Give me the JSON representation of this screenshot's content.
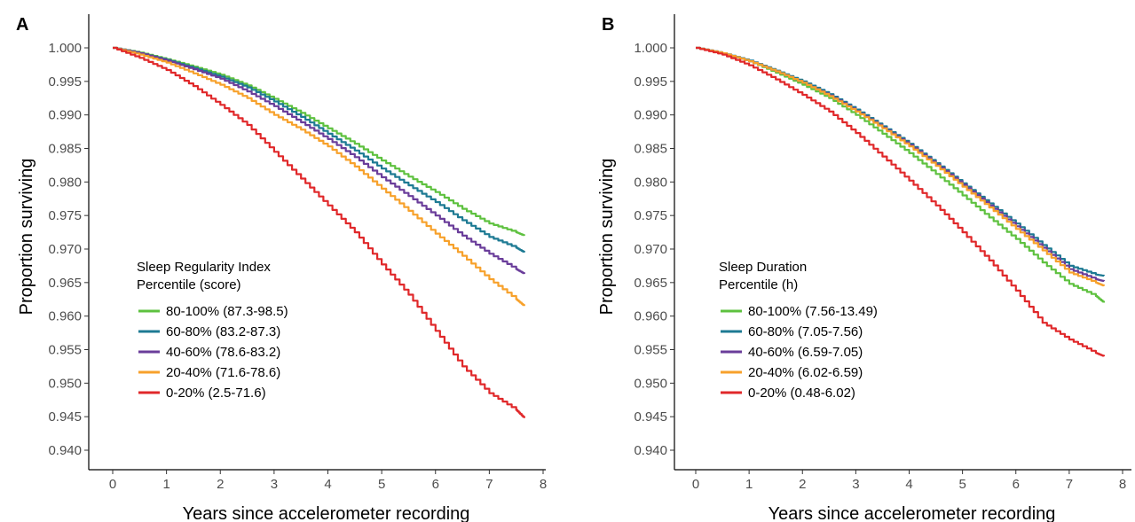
{
  "chart_data": [
    {
      "type": "line",
      "panel_letter": "A",
      "xlabel": "Years since accelerometer recording",
      "ylabel": "Proportion surviving",
      "xlim": [
        0,
        8
      ],
      "ylim": [
        0.94,
        1.0
      ],
      "x_ticks": [
        0,
        1,
        2,
        3,
        4,
        5,
        6,
        7,
        8
      ],
      "y_ticks": [
        0.94,
        0.945,
        0.95,
        0.955,
        0.96,
        0.965,
        0.97,
        0.975,
        0.98,
        0.985,
        0.99,
        0.995,
        1.0
      ],
      "y_tick_labels": [
        "0.940",
        "0.945",
        "0.950",
        "0.955",
        "0.960",
        "0.965",
        "0.970",
        "0.975",
        "0.980",
        "0.985",
        "0.990",
        "0.995",
        "1.000"
      ],
      "grid": false,
      "legend": {
        "placement": "bottom-left",
        "title_line1": "Sleep Regularity Index",
        "title_line2": "Percentile (score)"
      },
      "x": [
        0,
        0.5,
        1,
        1.5,
        2,
        2.5,
        3,
        3.5,
        4,
        4.5,
        5,
        5.5,
        6,
        6.5,
        7,
        7.5,
        7.65
      ],
      "series": [
        {
          "name": "80-100% (87.3-98.5)",
          "color": "#5ec13f",
          "values": [
            1.0,
            0.9993,
            0.9983,
            0.9972,
            0.996,
            0.9944,
            0.9924,
            0.9903,
            0.988,
            0.9857,
            0.9832,
            0.9808,
            0.9785,
            0.976,
            0.9738,
            0.9725,
            0.972
          ]
        },
        {
          "name": "60-80% (83.2-87.3)",
          "color": "#1d7a93",
          "values": [
            1.0,
            0.9992,
            0.9982,
            0.997,
            0.9957,
            0.9941,
            0.992,
            0.9897,
            0.9872,
            0.9847,
            0.982,
            0.9795,
            0.977,
            0.9743,
            0.9718,
            0.9702,
            0.9695
          ]
        },
        {
          "name": "40-60% (78.6-83.2)",
          "color": "#6a3d9a",
          "values": [
            1.0,
            0.9992,
            0.9981,
            0.9968,
            0.9954,
            0.9935,
            0.9913,
            0.9889,
            0.9864,
            0.9837,
            0.9807,
            0.9779,
            0.975,
            0.972,
            0.9693,
            0.967,
            0.9663
          ]
        },
        {
          "name": "20-40% (71.6-78.6)",
          "color": "#f7a12b",
          "values": [
            1.0,
            0.999,
            0.9978,
            0.9962,
            0.9945,
            0.9925,
            0.99,
            0.9878,
            0.9853,
            0.9823,
            0.979,
            0.9757,
            0.9723,
            0.969,
            0.9655,
            0.9625,
            0.9615
          ]
        },
        {
          "name": "0-20% (2.5-71.6)",
          "color": "#e0282a",
          "values": [
            1.0,
            0.9985,
            0.9967,
            0.9943,
            0.9915,
            0.9885,
            0.9845,
            0.9805,
            0.9765,
            0.9725,
            0.9677,
            0.9632,
            0.9578,
            0.9525,
            0.9485,
            0.946,
            0.9448
          ]
        }
      ]
    },
    {
      "type": "line",
      "panel_letter": "B",
      "xlabel": "Years since accelerometer recording",
      "ylabel": "Proportion surviving",
      "xlim": [
        0,
        8
      ],
      "ylim": [
        0.94,
        1.0
      ],
      "x_ticks": [
        0,
        1,
        2,
        3,
        4,
        5,
        6,
        7,
        8
      ],
      "y_ticks": [
        0.94,
        0.945,
        0.95,
        0.955,
        0.96,
        0.965,
        0.97,
        0.975,
        0.98,
        0.985,
        0.99,
        0.995,
        1.0
      ],
      "y_tick_labels": [
        "0.940",
        "0.945",
        "0.950",
        "0.955",
        "0.960",
        "0.965",
        "0.970",
        "0.975",
        "0.980",
        "0.985",
        "0.990",
        "0.995",
        "1.000"
      ],
      "grid": false,
      "legend": {
        "placement": "bottom-left",
        "title_line1": "Sleep Duration",
        "title_line2": "Percentile (h)"
      },
      "x": [
        0,
        0.5,
        1,
        1.5,
        2,
        2.5,
        3,
        3.5,
        4,
        4.5,
        5,
        5.5,
        6,
        6.5,
        7,
        7.5,
        7.65
      ],
      "series": [
        {
          "name": "80-100% (7.56-13.49)",
          "color": "#5ec13f",
          "values": [
            1.0,
            0.9992,
            0.998,
            0.9963,
            0.9945,
            0.9925,
            0.99,
            0.9872,
            0.9843,
            0.9812,
            0.978,
            0.9747,
            0.9715,
            0.968,
            0.9648,
            0.963,
            0.962
          ]
        },
        {
          "name": "60-80% (7.05-7.56)",
          "color": "#1d7a93",
          "values": [
            1.0,
            0.9992,
            0.9981,
            0.9966,
            0.995,
            0.9931,
            0.9908,
            0.9883,
            0.9857,
            0.9828,
            0.9798,
            0.9768,
            0.9738,
            0.9706,
            0.9675,
            0.9662,
            0.966
          ]
        },
        {
          "name": "40-60% (6.59-7.05)",
          "color": "#6a3d9a",
          "values": [
            1.0,
            0.9992,
            0.998,
            0.9965,
            0.9948,
            0.9929,
            0.9906,
            0.9881,
            0.9855,
            0.9826,
            0.9796,
            0.9765,
            0.9734,
            0.9702,
            0.967,
            0.9655,
            0.9652
          ]
        },
        {
          "name": "20-40% (6.02-6.59)",
          "color": "#f7a12b",
          "values": [
            1.0,
            0.9992,
            0.998,
            0.9965,
            0.9948,
            0.9928,
            0.9905,
            0.988,
            0.9853,
            0.9824,
            0.9793,
            0.9762,
            0.973,
            0.9698,
            0.9665,
            0.965,
            0.9645
          ]
        },
        {
          "name": "0-20% (0.48-6.02)",
          "color": "#e0282a",
          "values": [
            1.0,
            0.999,
            0.9974,
            0.9953,
            0.993,
            0.9905,
            0.9873,
            0.9838,
            0.9802,
            0.9765,
            0.9725,
            0.9683,
            0.9638,
            0.959,
            0.9565,
            0.9545,
            0.954
          ]
        }
      ]
    }
  ]
}
